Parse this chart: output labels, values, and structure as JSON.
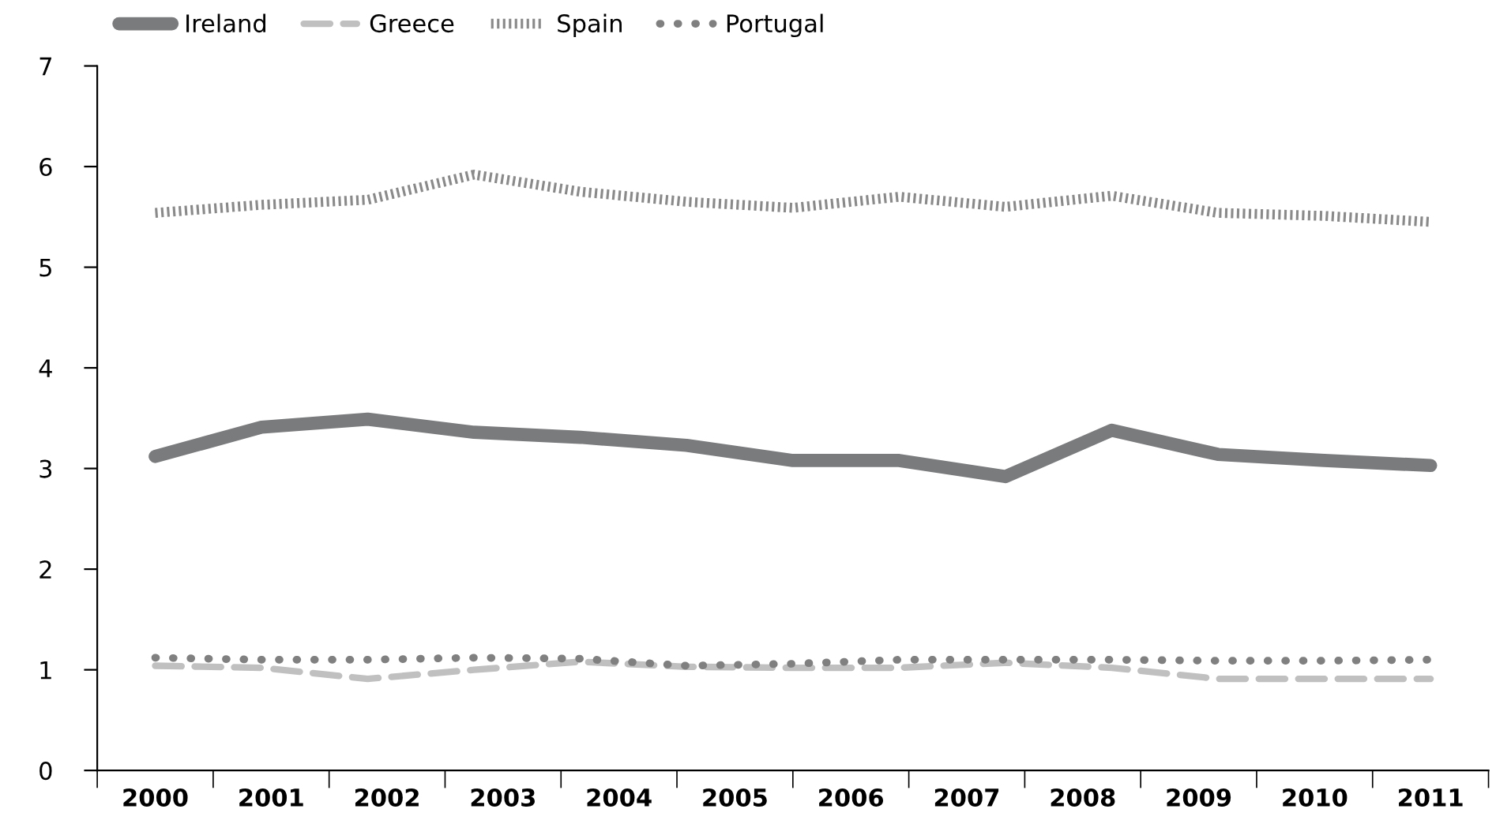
{
  "chart_data": {
    "type": "line",
    "x": [
      2000,
      2000.917,
      2001.833,
      2002.75,
      2003.667,
      2004.583,
      2005.5,
      2006.417,
      2007.333,
      2008.25,
      2009.167,
      2010.083,
      2011
    ],
    "series": [
      {
        "name": "Ireland",
        "color": "#7a7b7d",
        "line_style": "solid",
        "values": [
          3.12,
          3.41,
          3.49,
          3.36,
          3.31,
          3.23,
          3.08,
          3.08,
          2.92,
          3.38,
          3.14,
          3.08,
          3.03
        ]
      },
      {
        "name": "Greece",
        "color": "#c0c0c0",
        "line_style": "dashed",
        "values": [
          1.04,
          1.02,
          0.91,
          1.0,
          1.08,
          1.03,
          1.02,
          1.02,
          1.07,
          1.02,
          0.91,
          0.91,
          0.91
        ]
      },
      {
        "name": "Spain",
        "color": "#8a8a8a",
        "line_style": "dotted",
        "values": [
          5.54,
          5.62,
          5.67,
          5.92,
          5.75,
          5.65,
          5.59,
          5.7,
          5.6,
          5.71,
          5.54,
          5.51,
          5.45
        ]
      },
      {
        "name": "Portugal",
        "color": "#808080",
        "line_style": "dotted",
        "values": [
          1.12,
          1.1,
          1.1,
          1.12,
          1.11,
          1.04,
          1.06,
          1.1,
          1.1,
          1.1,
          1.09,
          1.09,
          1.1
        ]
      }
    ],
    "xlim": [
      1999.5,
      2011.5
    ],
    "xticks": [
      2000,
      2001,
      2002,
      2003,
      2004,
      2005,
      2006,
      2007,
      2008,
      2009,
      2010,
      2011,
      {
        "value": 1999.5,
        "label": null
      },
      {
        "value": 2000.5,
        "label": null
      },
      {
        "value": 2001.5,
        "label": null
      },
      {
        "value": 2002.5,
        "label": null
      },
      {
        "value": 2003.5,
        "label": null
      },
      {
        "value": 2004.5,
        "label": null
      },
      {
        "value": 2005.5,
        "label": null
      },
      {
        "value": 2006.5,
        "label": null
      },
      {
        "value": 2007.5,
        "label": null
      },
      {
        "value": 2008.5,
        "label": null
      },
      {
        "value": 2009.5,
        "label": null
      },
      {
        "value": 2010.5,
        "label": null
      },
      {
        "value": 2011.5,
        "label": null
      }
    ],
    "ylim": [
      0,
      7
    ],
    "yticks": [
      0,
      1,
      2,
      3,
      4,
      5,
      6,
      7
    ],
    "grid": false,
    "legend": "top left",
    "marker": "none"
  }
}
